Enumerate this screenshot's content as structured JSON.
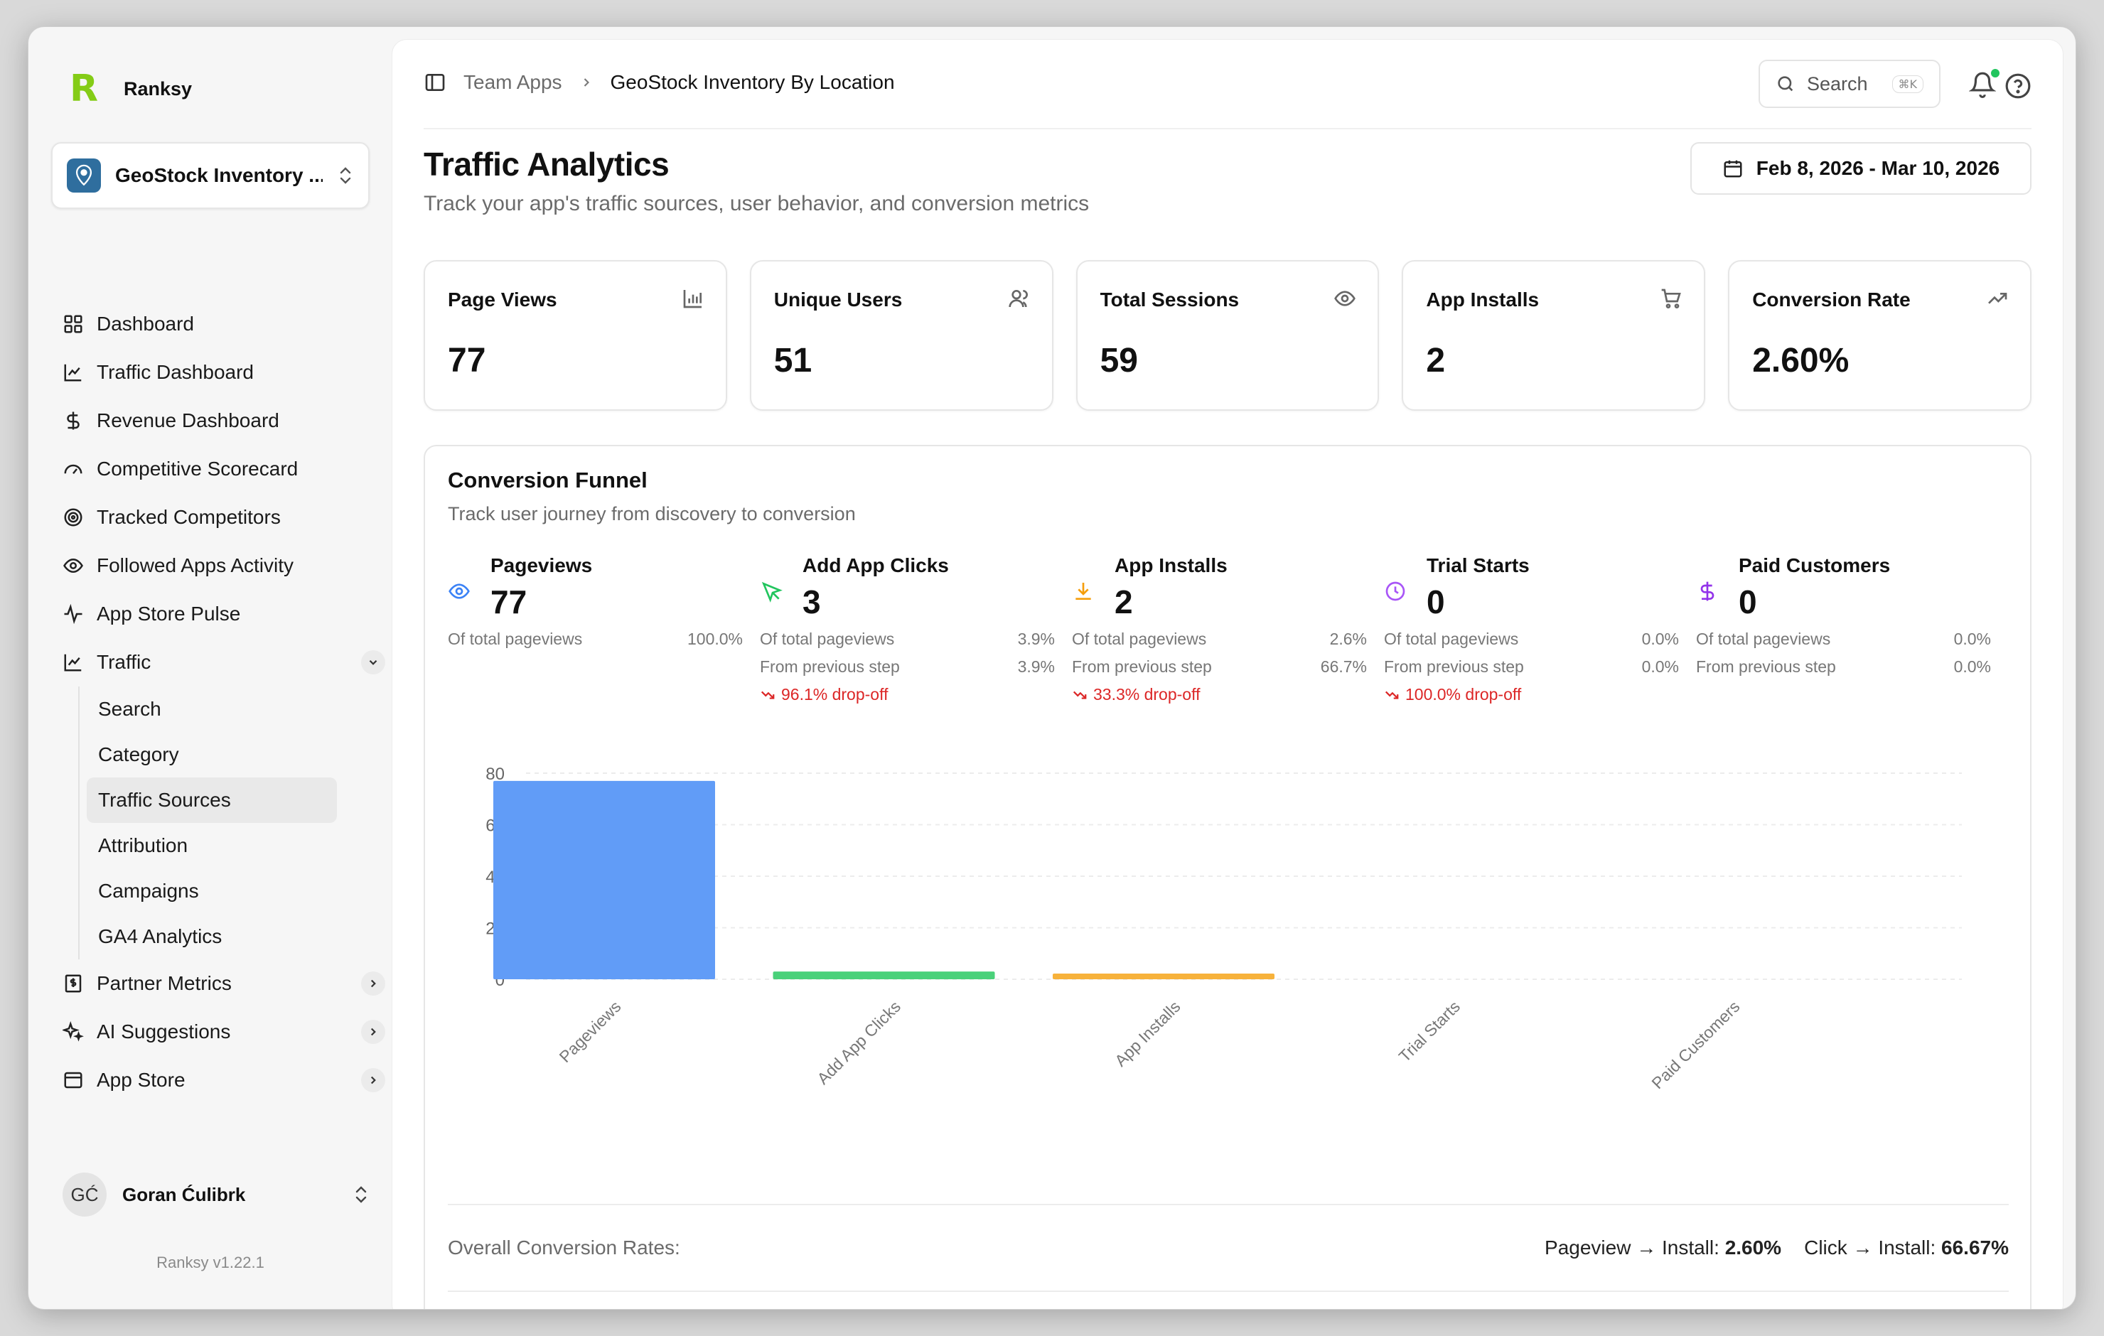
{
  "brand": {
    "name": "Ranksy",
    "logo_letter": "R"
  },
  "app_switcher": {
    "name": "GeoStock Inventory ..."
  },
  "nav": [
    {
      "label": "Dashboard",
      "icon": "grid-icon"
    },
    {
      "label": "Traffic Dashboard",
      "icon": "chart-line-icon"
    },
    {
      "label": "Revenue Dashboard",
      "icon": "dollar-icon"
    },
    {
      "label": "Competitive Scorecard",
      "icon": "gauge-icon"
    },
    {
      "label": "Tracked Competitors",
      "icon": "target-icon"
    },
    {
      "label": "Followed Apps Activity",
      "icon": "eye-icon"
    },
    {
      "label": "App Store Pulse",
      "icon": "activity-icon"
    },
    {
      "label": "Traffic",
      "icon": "chart-icon",
      "expanded": true
    }
  ],
  "traffic_sub": [
    "Search",
    "Category",
    "Traffic Sources",
    "Attribution",
    "Campaigns",
    "GA4 Analytics"
  ],
  "traffic_sub_active": "Traffic Sources",
  "nav_bottom": [
    {
      "label": "Partner Metrics",
      "icon": "receipt-icon"
    },
    {
      "label": "AI Suggestions",
      "icon": "sparkles-icon"
    },
    {
      "label": "App Store",
      "icon": "window-icon"
    }
  ],
  "user": {
    "initials": "GĆ",
    "name": "Goran Ćulibrk"
  },
  "version": "Ranksy  v1.22.1",
  "breadcrumb": {
    "parent": "Team Apps",
    "current": "GeoStock Inventory By Location"
  },
  "search": {
    "label": "Search",
    "shortcut": "⌘K"
  },
  "page": {
    "title": "Traffic Analytics",
    "subtitle": "Track your app's traffic sources, user behavior, and conversion metrics",
    "date_range": "Feb 8, 2026 - Mar 10, 2026"
  },
  "stats": [
    {
      "label": "Page Views",
      "value": "77",
      "icon": "bar-chart-icon"
    },
    {
      "label": "Unique Users",
      "value": "51",
      "icon": "users-icon"
    },
    {
      "label": "Total Sessions",
      "value": "59",
      "icon": "eye-icon"
    },
    {
      "label": "App Installs",
      "value": "2",
      "icon": "cart-icon"
    },
    {
      "label": "Conversion Rate",
      "value": "2.60%",
      "icon": "trending-up-icon"
    }
  ],
  "funnel": {
    "title": "Conversion Funnel",
    "subtitle": "Track user journey from discovery to conversion",
    "of_total_label": "Of total pageviews",
    "from_prev_label": "From previous step",
    "steps": [
      {
        "name": "Pageviews",
        "value": "77",
        "of_total": "100.0%",
        "from_prev": "",
        "dropoff": "",
        "icon": "eye-icon",
        "color": "#3b82f6"
      },
      {
        "name": "Add App Clicks",
        "value": "3",
        "of_total": "3.9%",
        "from_prev": "3.9%",
        "dropoff": "96.1% drop-off",
        "icon": "cursor-icon",
        "color": "#22c55e"
      },
      {
        "name": "App Installs",
        "value": "2",
        "of_total": "2.6%",
        "from_prev": "66.7%",
        "dropoff": "33.3% drop-off",
        "icon": "download-icon",
        "color": "#f59e0b"
      },
      {
        "name": "Trial Starts",
        "value": "0",
        "of_total": "0.0%",
        "from_prev": "0.0%",
        "dropoff": "100.0% drop-off",
        "icon": "clock-icon",
        "color": "#a855f7"
      },
      {
        "name": "Paid Customers",
        "value": "0",
        "of_total": "0.0%",
        "from_prev": "0.0%",
        "dropoff": "",
        "icon": "dollar-icon",
        "color": "#9333ea"
      }
    ],
    "overall_label": "Overall Conversion Rates:",
    "overall": [
      {
        "label": "Pageview → Install:",
        "value": "2.60%"
      },
      {
        "label": "Click → Install:",
        "value": "66.67%"
      }
    ]
  },
  "chart_data": {
    "type": "bar",
    "categories": [
      "Pageviews",
      "Add App Clicks",
      "App Installs",
      "Trial Starts",
      "Paid Customers"
    ],
    "values": [
      77,
      3,
      2,
      0,
      0
    ],
    "colors": [
      "#619cf7",
      "#4ad17a",
      "#f7b23b",
      "#a855f7",
      "#9333ea"
    ],
    "yticks": [
      0,
      20,
      40,
      60,
      80
    ],
    "ylim": [
      0,
      80
    ],
    "grid": true,
    "xlabel_rotation": -45
  }
}
